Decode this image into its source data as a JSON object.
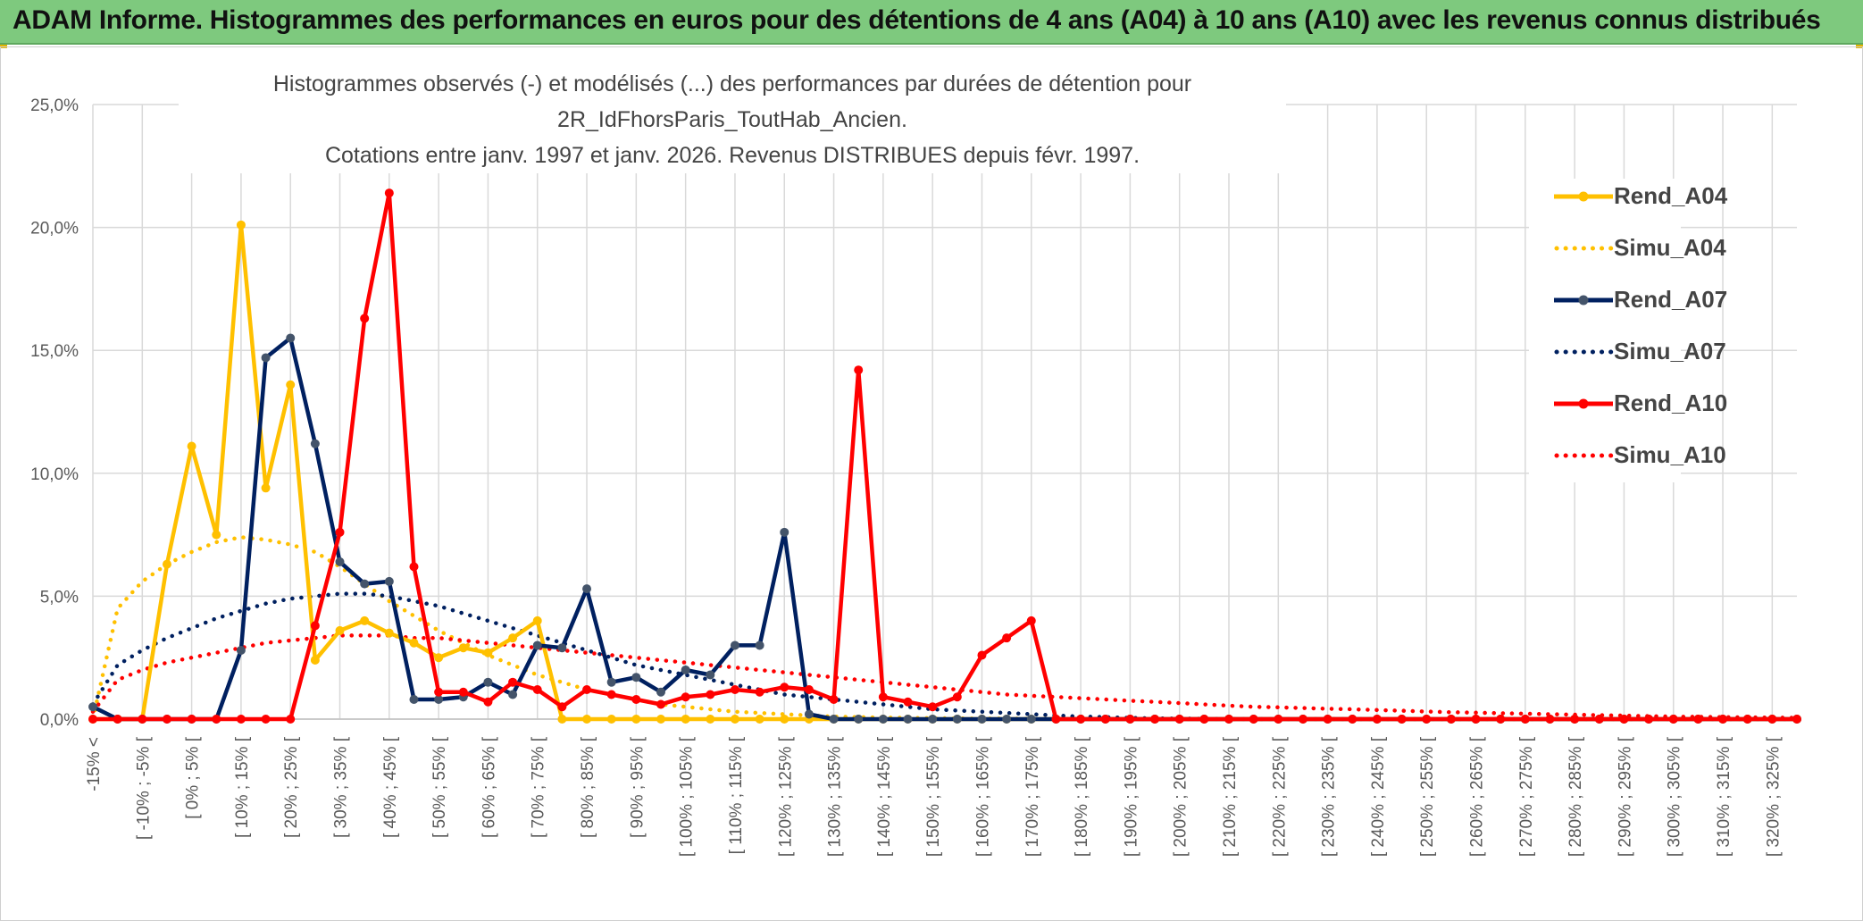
{
  "banner": {
    "title": "ADAM Informe. Histogrammes des performances en euros pour des détentions de 4 ans (A04) à 10 ans (A10) avec les revenus connus distribués"
  },
  "colors": {
    "banner": "#7ec97e",
    "Rend_A04": "#ffc000",
    "Rend_A07": "#002060",
    "Rend_A10": "#ff0000"
  },
  "chart_data": {
    "type": "line",
    "title": "Histogrammes observés (-) et modélisés (...) des performances par durées de détention pour 2R_IdFhorsParis_ToutHab_Ancien.",
    "subtitle": "Cotations entre janv. 1997 et janv. 2026. Revenus DISTRIBUES depuis févr. 1997.",
    "xlabel": "",
    "ylabel": "",
    "ylim": [
      0,
      25
    ],
    "yticks": [
      "0,0%",
      "5,0%",
      "10,0%",
      "15,0%",
      "20,0%",
      "25,0%"
    ],
    "grid": true,
    "legend_position": "right",
    "categories": [
      "-15% <",
      "[ -15% ; -10% [",
      "[ -10% ; -5% [",
      "[ -5% ; 0% [",
      "[ 0% ; 5% [",
      "[ 5% ; 10% [",
      "[ 10% ; 15% [",
      "[ 15% ; 20% [",
      "[ 20% ; 25% [",
      "[ 25% ; 30% [",
      "[ 30% ; 35% [",
      "[ 35% ; 40% [",
      "[ 40% ; 45% [",
      "[ 45% ; 50% [",
      "[ 50% ; 55% [",
      "[ 55% ; 60% [",
      "[ 60% ; 65% [",
      "[ 65% ; 70% [",
      "[ 70% ; 75% [",
      "[ 75% ; 80% [",
      "[ 80% ; 85% [",
      "[ 85% ; 90% [",
      "[ 90% ; 95% [",
      "[ 95% ; 100% [",
      "[ 100% ; 105% [",
      "[ 105% ; 110% [",
      "[ 110% ; 115% [",
      "[ 115% ; 120% [",
      "[ 120% ; 125% [",
      "[ 125% ; 130% [",
      "[ 130% ; 135% [",
      "[ 135% ; 140% [",
      "[ 140% ; 145% [",
      "[ 145% ; 150% [",
      "[ 150% ; 155% [",
      "[ 155% ; 160% [",
      "[ 160% ; 165% [",
      "[ 165% ; 170% [",
      "[ 170% ; 175% [",
      "[ 175% ; 180% [",
      "[ 180% ; 185% [",
      "[ 185% ; 190% [",
      "[ 190% ; 195% [",
      "[ 195% ; 200% [",
      "[ 200% ; 205% [",
      "[ 205% ; 210% [",
      "[ 210% ; 215% [",
      "[ 215% ; 220% [",
      "[ 220% ; 225% [",
      "[ 225% ; 230% [",
      "[ 230% ; 235% [",
      "[ 235% ; 240% [",
      "[ 240% ; 245% [",
      "[ 245% ; 250% [",
      "[ 250% ; 255% [",
      "[ 255% ; 260% [",
      "[ 260% ; 265% [",
      "[ 265% ; 270% [",
      "[ 270% ; 275% [",
      "[ 275% ; 280% [",
      "[ 280% ; 285% [",
      "[ 285% ; 290% [",
      "[ 290% ; 295% [",
      "[ 295% ; 300% [",
      "[ 300% ; 305% [",
      "[ 305% ; 310% [",
      "[ 310% ; 315% [",
      "[ 315% ; 320% [",
      "[ 320% ; 325% [",
      "[ 325% ; 330% ["
    ],
    "visible_tick_labels": [
      "-15% <",
      "[ -10% ; -5% [",
      "[ 0% ; 5% [",
      "[ 10% ; 15% [",
      "[ 20% ; 25% [",
      "[ 30% ; 35% [",
      "[ 40% ; 45% [",
      "[ 50% ; 55% [",
      "[ 60% ; 65% [",
      "[ 70% ; 75% [",
      "[ 80% ; 85% [",
      "[ 90% ; 95% [",
      "[ 100% ; 105% [",
      "[ 110% ; 115% [",
      "[ 120% ; 125% [",
      "[ 130% ; 135% [",
      "[ 140% ; 145% [",
      "[ 150% ; 155% [",
      "[ 160% ; 165% [",
      "[ 170% ; 175% [",
      "[ 180% ; 185% [",
      "[ 190% ; 195% [",
      "[ 200% ; 205% [",
      "[ 210% ; 215% [",
      "[ 220% ; 225% [",
      "[ 230% ; 235% [",
      "[ 240% ; 245% [",
      "[ 250% ; 255% [",
      "[ 260% ; 265% [",
      "[ 270% ; 275% [",
      "[ 280% ; 285% [",
      "[ 290% ; 295% [",
      "[ 300% ; 305% [",
      "[ 310% ; 315% [",
      "[ 320% ; 325% ["
    ],
    "series": [
      {
        "name": "Rend_A04",
        "style": "solid-markers",
        "color": "#ffc000",
        "values": [
          0,
          0,
          0,
          6.3,
          11.1,
          7.5,
          20.1,
          9.4,
          13.6,
          2.4,
          3.6,
          4.0,
          3.5,
          3.1,
          2.5,
          2.9,
          2.7,
          3.3,
          4.0,
          0,
          0,
          0,
          0,
          0,
          0,
          0,
          0,
          0,
          0,
          0,
          0,
          0,
          0,
          0,
          0,
          0,
          0,
          0,
          0,
          0,
          0,
          0,
          0,
          0,
          0,
          0,
          0,
          0,
          0,
          0,
          0,
          0,
          0,
          0,
          0,
          0,
          0,
          0,
          0,
          0,
          0,
          0,
          0,
          0,
          0,
          0,
          0,
          0,
          0,
          0
        ]
      },
      {
        "name": "Simu_A04",
        "style": "dotted",
        "color": "#ffc000",
        "values": [
          0,
          4.5,
          5.6,
          6.3,
          6.8,
          7.2,
          7.4,
          7.3,
          7.1,
          6.8,
          6.2,
          5.5,
          4.8,
          4.2,
          3.6,
          3.1,
          2.6,
          2.2,
          1.8,
          1.5,
          1.2,
          1.0,
          0.8,
          0.6,
          0.5,
          0.4,
          0.3,
          0.25,
          0.2,
          0.15,
          0.1,
          0.08,
          0.06,
          0.05,
          0.04,
          0.03,
          0.02,
          0.02,
          0.01,
          0.01,
          0,
          0,
          0,
          0,
          0,
          0,
          0,
          0,
          0,
          0,
          0,
          0,
          0,
          0,
          0,
          0,
          0,
          0,
          0,
          0,
          0,
          0,
          0,
          0,
          0,
          0,
          0,
          0,
          0,
          0
        ]
      },
      {
        "name": "Rend_A07",
        "style": "solid-markers",
        "color": "#002060",
        "values": [
          0.5,
          0,
          0,
          0,
          0,
          0,
          2.8,
          14.7,
          15.5,
          11.2,
          6.4,
          5.5,
          5.6,
          0.8,
          0.8,
          0.9,
          1.5,
          1.0,
          3.0,
          2.9,
          5.3,
          1.5,
          1.7,
          1.1,
          2.0,
          1.8,
          3.0,
          3.0,
          7.6,
          0.2,
          0,
          0,
          0,
          0,
          0,
          0,
          0,
          0,
          0,
          0,
          0,
          0,
          0,
          0,
          0,
          0,
          0,
          0,
          0,
          0,
          0,
          0,
          0,
          0,
          0,
          0,
          0,
          0,
          0,
          0,
          0,
          0,
          0,
          0,
          0,
          0,
          0,
          0,
          0,
          0
        ]
      },
      {
        "name": "Simu_A07",
        "style": "dotted",
        "color": "#002060",
        "values": [
          0.6,
          2.2,
          2.8,
          3.3,
          3.7,
          4.1,
          4.4,
          4.7,
          4.9,
          5.0,
          5.1,
          5.1,
          5.0,
          4.8,
          4.6,
          4.3,
          4.0,
          3.7,
          3.4,
          3.1,
          2.8,
          2.5,
          2.2,
          2.0,
          1.8,
          1.6,
          1.4,
          1.2,
          1.0,
          0.9,
          0.8,
          0.7,
          0.6,
          0.5,
          0.4,
          0.35,
          0.3,
          0.25,
          0.2,
          0.15,
          0.1,
          0.08,
          0.05,
          0.03,
          0.02,
          0.01,
          0,
          0,
          0,
          0,
          0,
          0,
          0,
          0,
          0,
          0,
          0,
          0,
          0,
          0,
          0,
          0,
          0,
          0,
          0,
          0,
          0,
          0,
          0,
          0
        ]
      },
      {
        "name": "Rend_A10",
        "style": "solid-markers",
        "color": "#ff0000",
        "values": [
          0,
          0,
          0,
          0,
          0,
          0,
          0,
          0,
          0,
          3.8,
          7.6,
          16.3,
          21.4,
          6.2,
          1.1,
          1.1,
          0.7,
          1.5,
          1.2,
          0.5,
          1.2,
          1.0,
          0.8,
          0.6,
          0.9,
          1.0,
          1.2,
          1.1,
          1.3,
          1.2,
          0.8,
          14.2,
          0.9,
          0.7,
          0.5,
          0.9,
          2.6,
          3.3,
          4.0,
          0,
          0,
          0,
          0,
          0,
          0,
          0,
          0,
          0,
          0,
          0,
          0,
          0,
          0,
          0,
          0,
          0,
          0,
          0,
          0,
          0,
          0,
          0,
          0,
          0,
          0,
          0,
          0,
          0,
          0,
          0
        ]
      },
      {
        "name": "Simu_A10",
        "style": "dotted",
        "color": "#ff0000",
        "values": [
          0.3,
          1.6,
          2.0,
          2.3,
          2.5,
          2.7,
          2.9,
          3.1,
          3.2,
          3.3,
          3.4,
          3.4,
          3.4,
          3.3,
          3.3,
          3.2,
          3.1,
          3.0,
          2.9,
          2.8,
          2.7,
          2.6,
          2.5,
          2.4,
          2.3,
          2.2,
          2.1,
          2.0,
          1.9,
          1.8,
          1.7,
          1.6,
          1.5,
          1.4,
          1.3,
          1.2,
          1.1,
          1.0,
          0.95,
          0.9,
          0.85,
          0.8,
          0.75,
          0.7,
          0.65,
          0.6,
          0.55,
          0.5,
          0.48,
          0.45,
          0.42,
          0.4,
          0.37,
          0.34,
          0.31,
          0.28,
          0.26,
          0.24,
          0.22,
          0.2,
          0.18,
          0.16,
          0.14,
          0.12,
          0.1,
          0.09,
          0.08,
          0.07,
          0.06,
          0.05
        ]
      }
    ]
  }
}
